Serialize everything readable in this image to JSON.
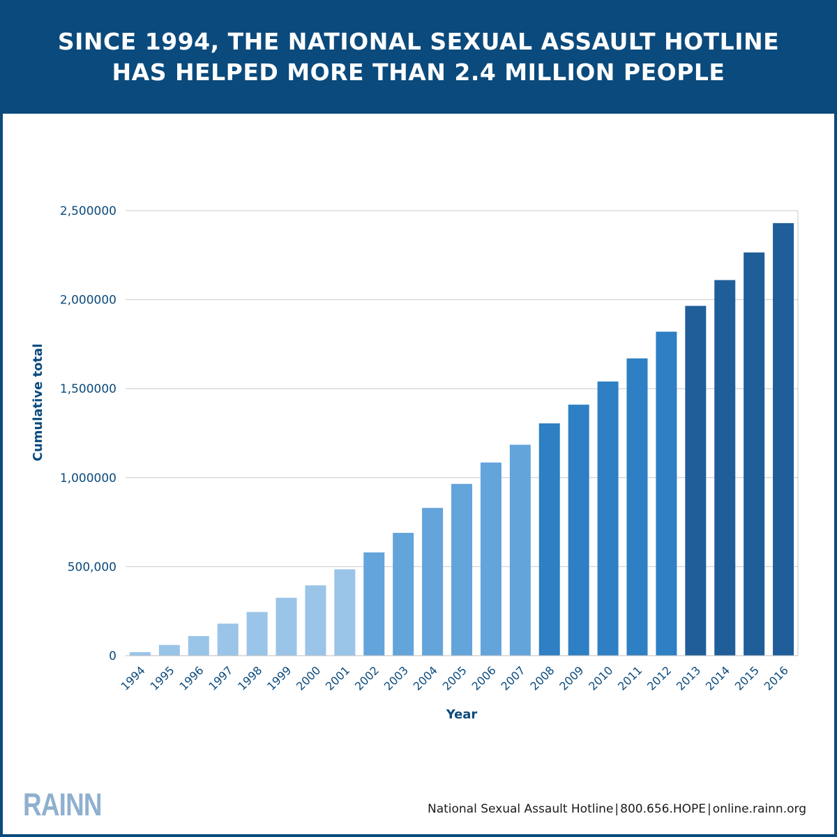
{
  "header": {
    "line1": "SINCE 1994, THE NATIONAL SEXUAL ASSAULT HOTLINE",
    "line2": "HAS HELPED MORE THAN 2.4 MILLION PEOPLE"
  },
  "colors": {
    "header_bg": "#0b4a7c",
    "axis_text": "#0b4a7c",
    "light": "#9ac4e8",
    "medium": "#63a4db",
    "strong": "#2e7fc3",
    "dark": "#1f5e99"
  },
  "chart_data": {
    "type": "bar",
    "xlabel": "Year",
    "ylabel": "Cumulative total",
    "ylim": [
      0,
      2500000
    ],
    "yticks": [
      {
        "value": 0,
        "label": "0"
      },
      {
        "value": 500000,
        "label": "500,000"
      },
      {
        "value": 1000000,
        "label": "1,000000"
      },
      {
        "value": 1500000,
        "label": "1,500000"
      },
      {
        "value": 2000000,
        "label": "2,000000"
      },
      {
        "value": 2500000,
        "label": "2,500000"
      }
    ],
    "categories": [
      "1994",
      "1995",
      "1996",
      "1997",
      "1998",
      "1999",
      "2000",
      "2001",
      "2002",
      "2003",
      "2004",
      "2005",
      "2006",
      "2007",
      "2008",
      "2009",
      "2010",
      "2011",
      "2012",
      "2013",
      "2014",
      "2015",
      "2016"
    ],
    "values": [
      20000,
      60000,
      110000,
      180000,
      245000,
      325000,
      395000,
      485000,
      580000,
      690000,
      830000,
      965000,
      1085000,
      1185000,
      1305000,
      1410000,
      1540000,
      1670000,
      1820000,
      1965000,
      2110000,
      2265000,
      2430000
    ],
    "shades": [
      "light",
      "light",
      "light",
      "light",
      "light",
      "light",
      "light",
      "light",
      "medium",
      "medium",
      "medium",
      "medium",
      "medium",
      "medium",
      "strong",
      "strong",
      "strong",
      "strong",
      "strong",
      "dark",
      "dark",
      "dark",
      "dark"
    ],
    "grid": true
  },
  "footer": {
    "logo_text": "RAINN",
    "hotline": "National Sexual Assault Hotline",
    "phone": "800.656.HOPE",
    "site": "online.rainn.org",
    "separator": "|"
  }
}
